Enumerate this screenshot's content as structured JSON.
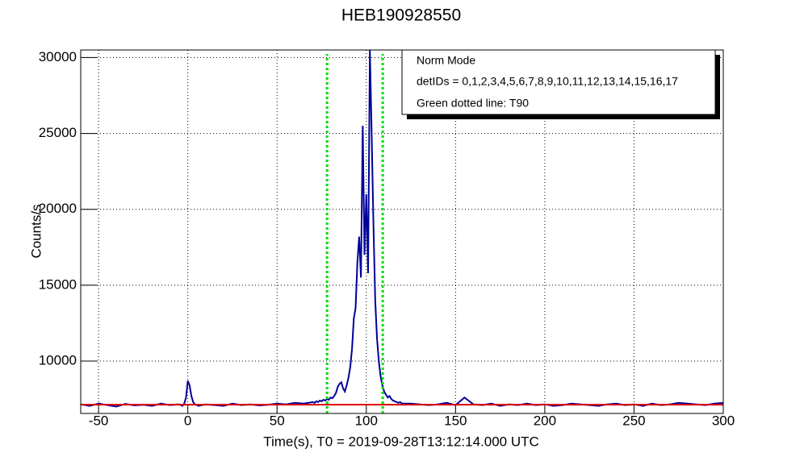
{
  "chart_data": {
    "type": "line",
    "title": "HEB190928550",
    "x_label": "Time(s), T0 = 2019-09-28T13:12:14.000 UTC",
    "y_label": "Counts/s",
    "legend_lines": [
      "Norm Mode",
      "detIDs = 0,1,2,3,4,5,6,7,8,9,10,11,12,13,14,15,16,17",
      "Green dotted line: T90"
    ],
    "xlim": [
      -60,
      300
    ],
    "ylim": [
      6550,
      30500
    ],
    "xticks": [
      -50,
      0,
      50,
      100,
      150,
      200,
      250,
      300
    ],
    "yticks": [
      10000,
      15000,
      20000,
      25000,
      30000
    ],
    "grid": true,
    "t90": [
      78,
      109.2
    ],
    "t90_color": "#00dd00",
    "series": [
      {
        "color": "#000099",
        "x": [
          -60,
          -55,
          -50,
          -45,
          -40,
          -35,
          -30,
          -25,
          -20,
          -15,
          -10,
          -5,
          -4,
          -3,
          -2,
          -1,
          0,
          1,
          2,
          3,
          4,
          5,
          6,
          10,
          15,
          20,
          25,
          30,
          35,
          40,
          45,
          50,
          55,
          60,
          65,
          70,
          71,
          72,
          73,
          74,
          75,
          76,
          77,
          78,
          79,
          80,
          81,
          82,
          83,
          84,
          85,
          86,
          87,
          88,
          89,
          90,
          91,
          92,
          93,
          94,
          95,
          96,
          97,
          98,
          99,
          100,
          101,
          102,
          103,
          104,
          105,
          106,
          107,
          108,
          109,
          110,
          111,
          112,
          113,
          114,
          115,
          116,
          117,
          118,
          119,
          120,
          125,
          130,
          135,
          140,
          145,
          150,
          155,
          160,
          165,
          170,
          175,
          180,
          185,
          190,
          195,
          200,
          205,
          210,
          215,
          220,
          225,
          230,
          235,
          240,
          245,
          250,
          255,
          260,
          265,
          270,
          275,
          280,
          285,
          290,
          295,
          300
        ],
        "values": [
          7150,
          7050,
          7200,
          7100,
          7000,
          7180,
          7080,
          7120,
          7050,
          7200,
          7100,
          7150,
          7100,
          7050,
          7200,
          7600,
          8700,
          8400,
          7700,
          7300,
          7150,
          7100,
          7050,
          7150,
          7100,
          7050,
          7200,
          7100,
          7150,
          7080,
          7120,
          7200,
          7150,
          7250,
          7200,
          7300,
          7250,
          7350,
          7300,
          7400,
          7350,
          7450,
          7400,
          7500,
          7450,
          7600,
          7550,
          7700,
          7900,
          8300,
          8500,
          8600,
          8200,
          8000,
          8400,
          8900,
          9600,
          10800,
          12800,
          13500,
          16500,
          18200,
          15500,
          25500,
          17000,
          21000,
          15800,
          30500,
          25000,
          19000,
          14000,
          11500,
          10000,
          9000,
          8400,
          8000,
          7800,
          7600,
          7700,
          7500,
          7400,
          7350,
          7300,
          7250,
          7300,
          7200,
          7200,
          7150,
          7100,
          7150,
          7250,
          7100,
          7600,
          7150,
          7100,
          7200,
          7050,
          7150,
          7100,
          7200,
          7100,
          7150,
          7050,
          7100,
          7200,
          7150,
          7100,
          7050,
          7150,
          7200,
          7100,
          7150,
          7050,
          7200,
          7100,
          7150,
          7250,
          7200,
          7150,
          7100,
          7200,
          7250
        ]
      },
      {
        "color": "#dd0000",
        "x": [
          -60,
          300
        ],
        "values": [
          7130,
          7130
        ]
      }
    ]
  }
}
